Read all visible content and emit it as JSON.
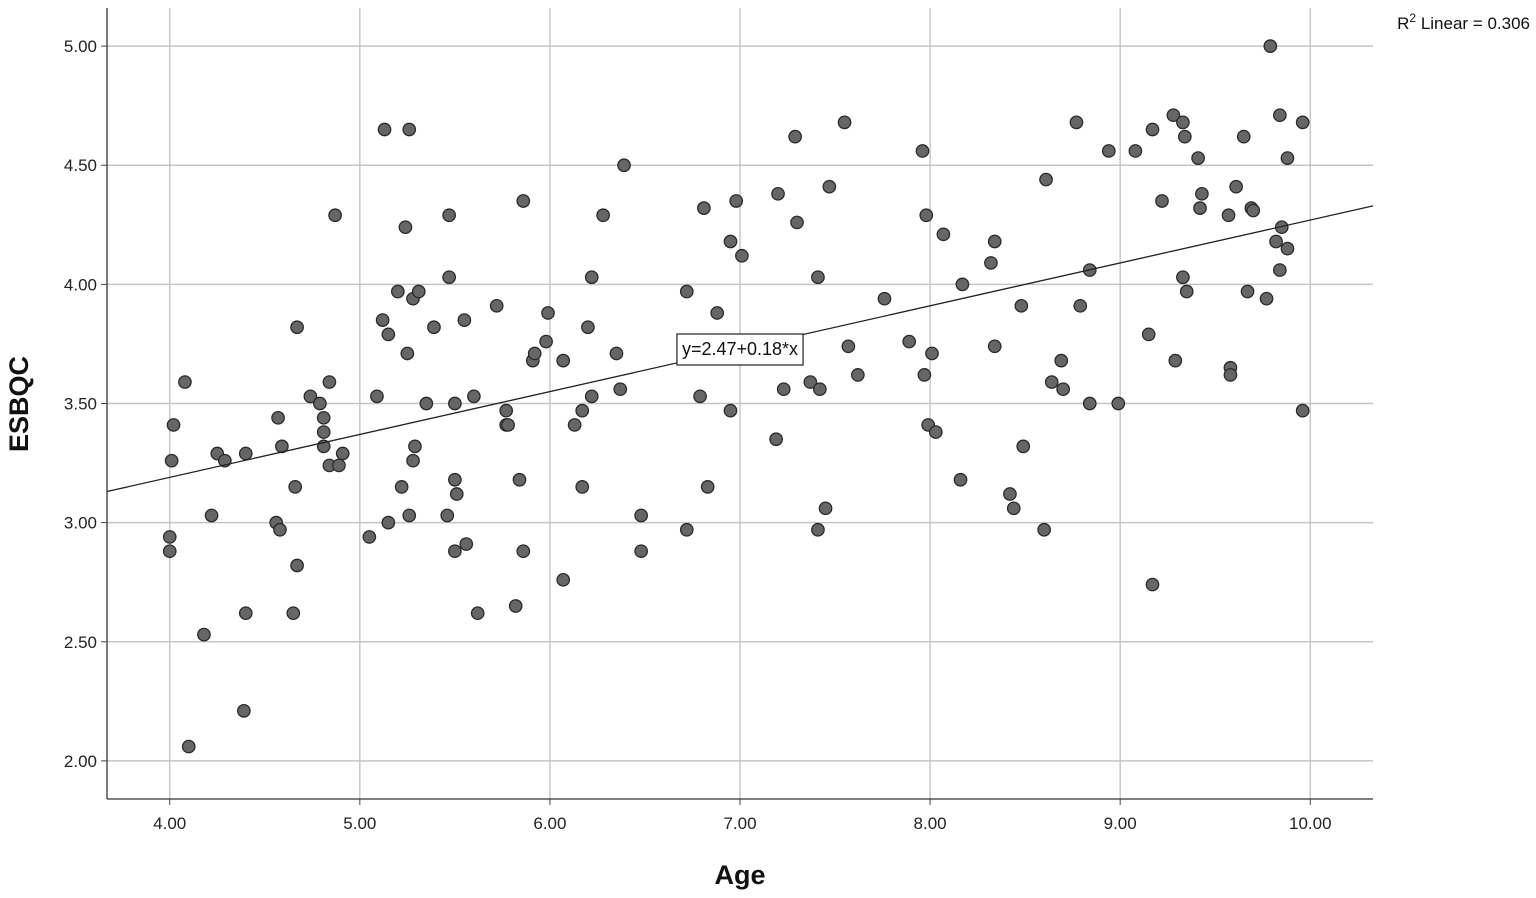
{
  "chart_data": {
    "type": "scatter",
    "title": "",
    "xlabel": "Age",
    "ylabel": "ESBQC",
    "xlim": [
      3.67,
      10.33
    ],
    "ylim": [
      1.84,
      5.16
    ],
    "xticks": [
      "4.00",
      "5.00",
      "6.00",
      "7.00",
      "8.00",
      "9.00",
      "10.00"
    ],
    "yticks": [
      "2.00",
      "2.50",
      "3.00",
      "3.50",
      "4.00",
      "4.50",
      "5.00"
    ],
    "grid": true,
    "legend": "none",
    "point_color": "#666666",
    "fit_line": {
      "intercept": 2.47,
      "slope": 0.18,
      "equation_label": "y=2.47+0.18*x"
    },
    "r2_label": {
      "prefix": "R",
      "sup": "2",
      "text": " Linear = 0.306"
    },
    "points": [
      [
        4.0,
        2.94
      ],
      [
        4.0,
        2.88
      ],
      [
        4.01,
        3.26
      ],
      [
        4.02,
        3.41
      ],
      [
        4.08,
        3.59
      ],
      [
        4.1,
        2.06
      ],
      [
        4.18,
        2.53
      ],
      [
        4.22,
        3.03
      ],
      [
        4.25,
        3.29
      ],
      [
        4.29,
        3.26
      ],
      [
        4.39,
        2.21
      ],
      [
        4.4,
        3.29
      ],
      [
        4.4,
        2.62
      ],
      [
        4.56,
        3.0
      ],
      [
        4.57,
        3.44
      ],
      [
        4.58,
        2.97
      ],
      [
        4.59,
        3.32
      ],
      [
        4.65,
        2.62
      ],
      [
        4.66,
        3.15
      ],
      [
        4.67,
        2.82
      ],
      [
        4.67,
        3.82
      ],
      [
        4.74,
        3.53
      ],
      [
        4.79,
        3.5
      ],
      [
        4.81,
        3.44
      ],
      [
        4.81,
        3.38
      ],
      [
        4.81,
        3.32
      ],
      [
        4.84,
        3.24
      ],
      [
        4.84,
        3.59
      ],
      [
        4.87,
        4.29
      ],
      [
        4.89,
        3.24
      ],
      [
        4.91,
        3.29
      ],
      [
        5.05,
        2.94
      ],
      [
        5.09,
        3.53
      ],
      [
        5.12,
        3.85
      ],
      [
        5.13,
        4.65
      ],
      [
        5.15,
        3.79
      ],
      [
        5.15,
        3.0
      ],
      [
        5.2,
        3.97
      ],
      [
        5.22,
        3.15
      ],
      [
        5.24,
        4.24
      ],
      [
        5.25,
        3.71
      ],
      [
        5.26,
        3.03
      ],
      [
        5.26,
        4.65
      ],
      [
        5.28,
        3.94
      ],
      [
        5.28,
        3.26
      ],
      [
        5.29,
        3.32
      ],
      [
        5.31,
        3.97
      ],
      [
        5.35,
        3.5
      ],
      [
        5.39,
        3.82
      ],
      [
        5.46,
        3.03
      ],
      [
        5.47,
        4.29
      ],
      [
        5.47,
        4.03
      ],
      [
        5.5,
        3.18
      ],
      [
        5.5,
        2.88
      ],
      [
        5.5,
        3.5
      ],
      [
        5.51,
        3.12
      ],
      [
        5.55,
        3.85
      ],
      [
        5.56,
        2.91
      ],
      [
        5.6,
        3.53
      ],
      [
        5.62,
        2.62
      ],
      [
        5.72,
        3.91
      ],
      [
        5.77,
        3.47
      ],
      [
        5.77,
        3.41
      ],
      [
        5.78,
        3.41
      ],
      [
        5.82,
        2.65
      ],
      [
        5.84,
        3.18
      ],
      [
        5.86,
        4.35
      ],
      [
        5.86,
        2.88
      ],
      [
        5.91,
        3.68
      ],
      [
        5.92,
        3.71
      ],
      [
        5.98,
        3.76
      ],
      [
        5.99,
        3.88
      ],
      [
        6.07,
        3.68
      ],
      [
        6.07,
        2.76
      ],
      [
        6.13,
        3.41
      ],
      [
        6.17,
        3.15
      ],
      [
        6.17,
        3.47
      ],
      [
        6.2,
        3.82
      ],
      [
        6.22,
        3.53
      ],
      [
        6.22,
        4.03
      ],
      [
        6.28,
        4.29
      ],
      [
        6.35,
        3.71
      ],
      [
        6.37,
        3.56
      ],
      [
        6.39,
        4.5
      ],
      [
        6.48,
        2.88
      ],
      [
        6.48,
        3.03
      ],
      [
        6.72,
        2.97
      ],
      [
        6.72,
        3.97
      ],
      [
        6.79,
        3.53
      ],
      [
        6.81,
        4.32
      ],
      [
        6.83,
        3.15
      ],
      [
        6.88,
        3.88
      ],
      [
        6.95,
        4.18
      ],
      [
        6.95,
        3.47
      ],
      [
        6.98,
        4.35
      ],
      [
        7.01,
        4.12
      ],
      [
        7.19,
        3.35
      ],
      [
        7.2,
        4.38
      ],
      [
        7.23,
        3.56
      ],
      [
        7.29,
        4.62
      ],
      [
        7.3,
        4.26
      ],
      [
        7.37,
        3.59
      ],
      [
        7.41,
        2.97
      ],
      [
        7.41,
        4.03
      ],
      [
        7.42,
        3.56
      ],
      [
        7.45,
        3.06
      ],
      [
        7.47,
        4.41
      ],
      [
        7.55,
        4.68
      ],
      [
        7.57,
        3.74
      ],
      [
        7.62,
        3.62
      ],
      [
        7.76,
        3.94
      ],
      [
        7.89,
        3.76
      ],
      [
        7.96,
        4.56
      ],
      [
        7.97,
        3.62
      ],
      [
        7.98,
        4.29
      ],
      [
        7.99,
        3.41
      ],
      [
        8.01,
        3.71
      ],
      [
        8.03,
        3.38
      ],
      [
        8.07,
        4.21
      ],
      [
        8.16,
        3.18
      ],
      [
        8.17,
        4.0
      ],
      [
        8.32,
        4.09
      ],
      [
        8.34,
        3.74
      ],
      [
        8.34,
        4.18
      ],
      [
        8.42,
        3.12
      ],
      [
        8.44,
        3.06
      ],
      [
        8.48,
        3.91
      ],
      [
        8.49,
        3.32
      ],
      [
        8.6,
        2.97
      ],
      [
        8.61,
        4.44
      ],
      [
        8.64,
        3.59
      ],
      [
        8.69,
        3.68
      ],
      [
        8.7,
        3.56
      ],
      [
        8.77,
        4.68
      ],
      [
        8.79,
        3.91
      ],
      [
        8.84,
        4.06
      ],
      [
        8.84,
        3.5
      ],
      [
        8.94,
        4.56
      ],
      [
        8.99,
        3.5
      ],
      [
        9.08,
        4.56
      ],
      [
        9.15,
        3.79
      ],
      [
        9.17,
        4.65
      ],
      [
        9.17,
        2.74
      ],
      [
        9.22,
        4.35
      ],
      [
        9.28,
        4.71
      ],
      [
        9.29,
        3.68
      ],
      [
        9.33,
        4.03
      ],
      [
        9.33,
        4.68
      ],
      [
        9.34,
        4.62
      ],
      [
        9.35,
        3.97
      ],
      [
        9.41,
        4.53
      ],
      [
        9.42,
        4.32
      ],
      [
        9.43,
        4.38
      ],
      [
        9.57,
        4.29
      ],
      [
        9.58,
        3.65
      ],
      [
        9.58,
        3.62
      ],
      [
        9.61,
        4.41
      ],
      [
        9.65,
        4.62
      ],
      [
        9.67,
        3.97
      ],
      [
        9.69,
        4.32
      ],
      [
        9.7,
        4.31
      ],
      [
        9.77,
        3.94
      ],
      [
        9.79,
        5.0
      ],
      [
        9.82,
        4.18
      ],
      [
        9.84,
        4.71
      ],
      [
        9.84,
        4.06
      ],
      [
        9.85,
        4.24
      ],
      [
        9.88,
        4.53
      ],
      [
        9.88,
        4.15
      ],
      [
        9.96,
        3.47
      ],
      [
        9.96,
        4.68
      ]
    ]
  }
}
